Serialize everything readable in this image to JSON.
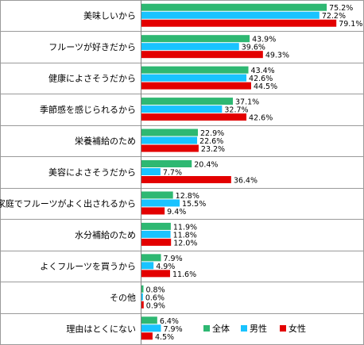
{
  "chart_data": {
    "type": "bar",
    "orientation": "horizontal",
    "categories": [
      "美味しいから",
      "フルーツが好きだから",
      "健康によさそうだから",
      "季節感を感じられるから",
      "栄養補給のため",
      "美容によさそうだから",
      "家庭でフルーツがよく出されるから",
      "水分補給のため",
      "よくフルーツを買うから",
      "その他",
      "理由はとくにない"
    ],
    "series": [
      {
        "name": "全体",
        "color": "#2eb872",
        "values": [
          75.2,
          43.9,
          43.4,
          37.1,
          22.9,
          20.4,
          12.8,
          11.9,
          7.9,
          0.8,
          6.4
        ]
      },
      {
        "name": "男性",
        "color": "#19c3ff",
        "values": [
          72.2,
          39.6,
          42.6,
          32.7,
          22.6,
          7.7,
          15.5,
          11.8,
          4.9,
          0.6,
          7.9
        ]
      },
      {
        "name": "女性",
        "color": "#e30000",
        "values": [
          79.1,
          49.3,
          44.5,
          42.6,
          23.2,
          36.4,
          9.4,
          12.0,
          11.6,
          0.9,
          4.5
        ]
      }
    ],
    "value_suffix": "%",
    "xlim": [
      0,
      90
    ],
    "grid": true,
    "legend_position": "bottom-right"
  }
}
